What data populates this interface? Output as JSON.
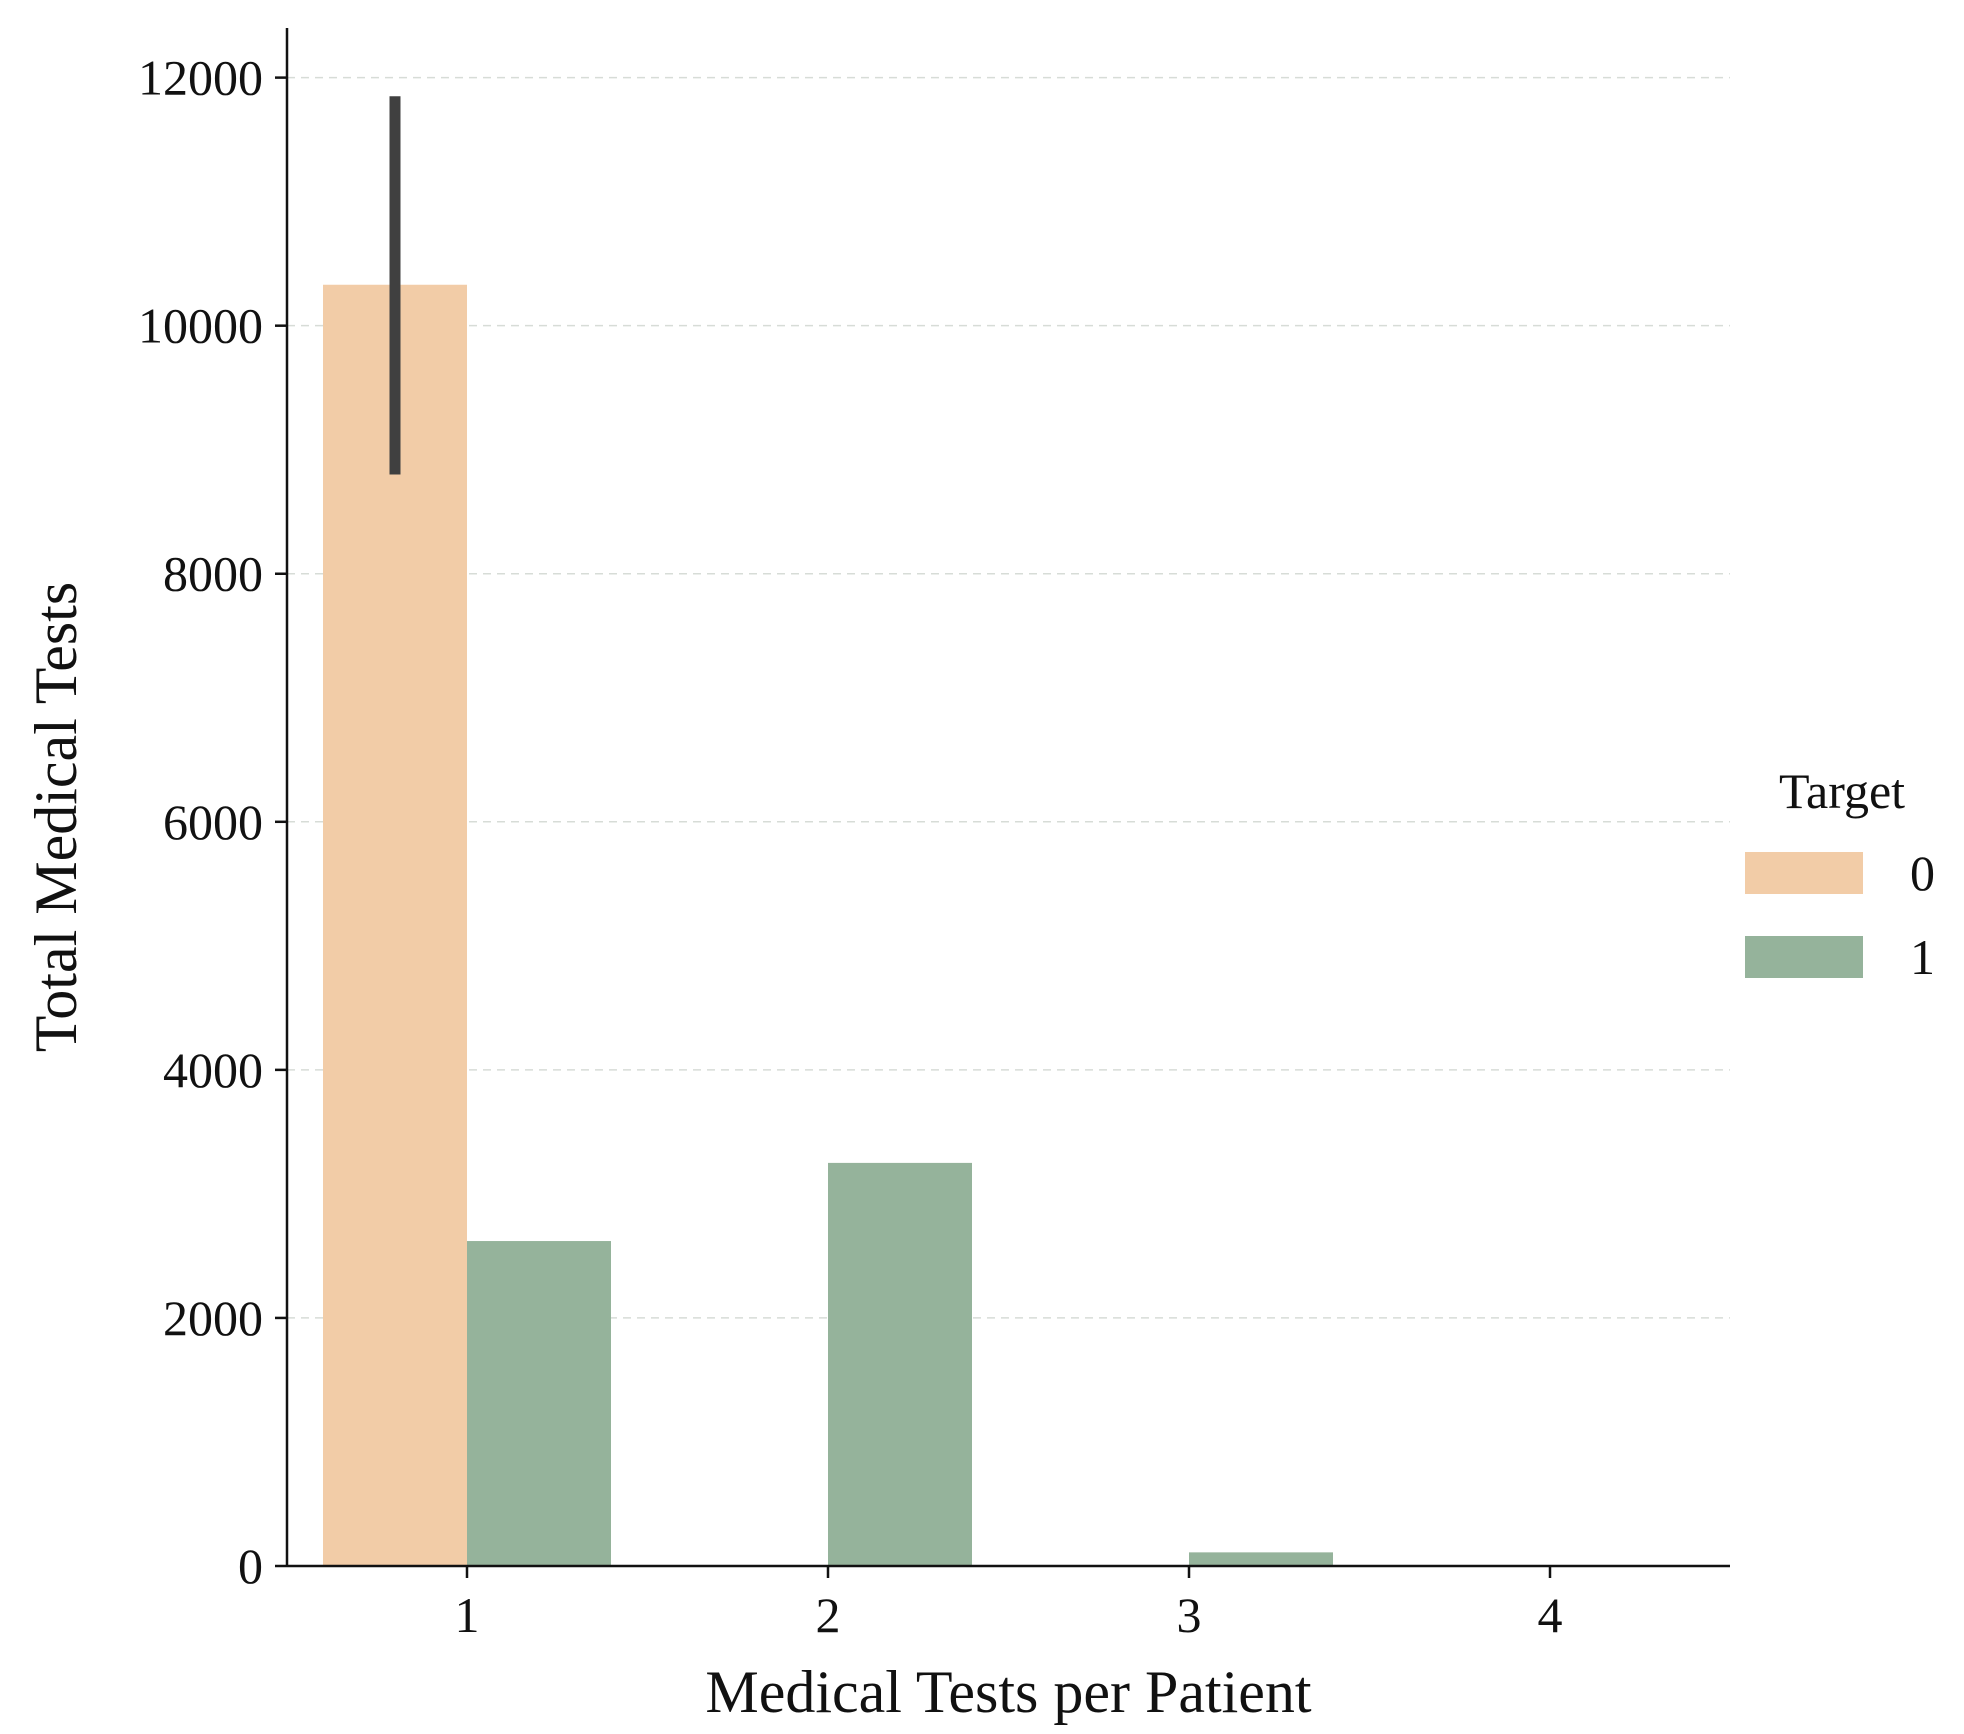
{
  "chart_data": {
    "type": "bar",
    "title": "",
    "xlabel": "Medical Tests per Patient",
    "ylabel": "Total Medical Tests",
    "categories": [
      "1",
      "2",
      "3",
      "4"
    ],
    "ylim": [
      0,
      12400
    ],
    "yticks": [
      0,
      2000,
      4000,
      6000,
      8000,
      10000,
      12000
    ],
    "grid": "y-dashed",
    "legend": {
      "title": "Target",
      "placement": "right"
    },
    "series": [
      {
        "name": "0",
        "color": "#f2cca7",
        "values": [
          10330,
          null,
          null,
          null
        ],
        "error": [
          [
            8800,
            11850
          ],
          null,
          null,
          null
        ]
      },
      {
        "name": "1",
        "color": "#95b39b",
        "values": [
          2620,
          3250,
          110,
          0
        ],
        "error": [
          null,
          null,
          null,
          null
        ]
      }
    ],
    "error_bar_color": "#404040"
  }
}
